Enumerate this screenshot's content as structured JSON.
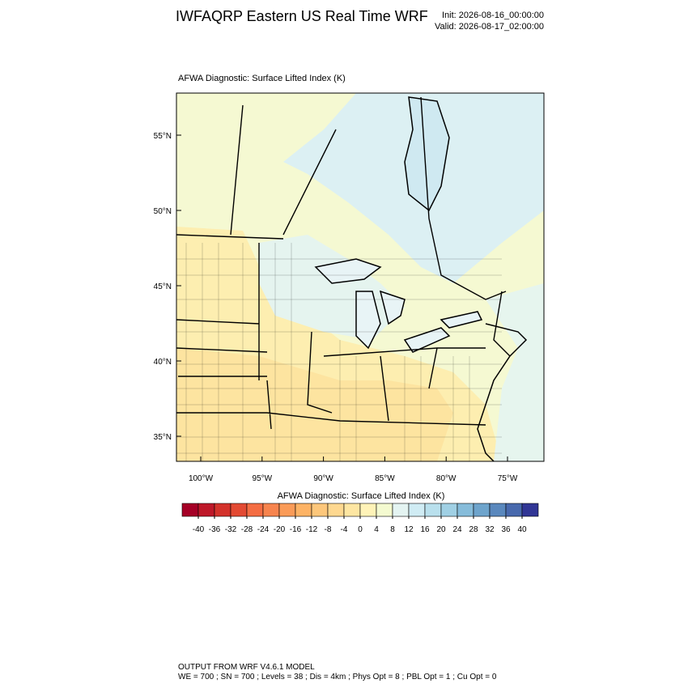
{
  "header": {
    "title": "IWFAQRP Eastern US Real Time WRF",
    "init": "Init: 2026-08-16_00:00:00",
    "valid": "Valid: 2026-08-17_02:00:00"
  },
  "map": {
    "title": "AFWA Diagnostic: Surface Lifted Index   (K)",
    "lat_ticks": [
      {
        "value": 55,
        "label": "55°N"
      },
      {
        "value": 50,
        "label": "50°N"
      },
      {
        "value": 45,
        "label": "45°N"
      },
      {
        "value": 40,
        "label": "40°N"
      },
      {
        "value": 35,
        "label": "35°N"
      }
    ],
    "lon_ticks": [
      {
        "value": -100,
        "label": "100°W"
      },
      {
        "value": -95,
        "label": "95°W"
      },
      {
        "value": -90,
        "label": "90°W"
      },
      {
        "value": -85,
        "label": "85°W"
      },
      {
        "value": -80,
        "label": "80°W"
      },
      {
        "value": -75,
        "label": "75°W"
      }
    ]
  },
  "colorbar": {
    "title": "AFWA Diagnostic: Surface Lifted Index  (K)",
    "levels": [
      -40,
      -36,
      -32,
      -28,
      -24,
      -20,
      -16,
      -12,
      -8,
      -4,
      0,
      4,
      8,
      12,
      16,
      20,
      24,
      28,
      32,
      36,
      40
    ],
    "colors": [
      "#a50026",
      "#be1829",
      "#d3322b",
      "#e34a33",
      "#f46d43",
      "#f7844e",
      "#fa9b58",
      "#fdb365",
      "#fdc77b",
      "#fed890",
      "#fee6a2",
      "#fff3b8",
      "#f4fad0",
      "#e4f4f2",
      "#d0ecf4",
      "#b9e0ed",
      "#a0d0e4",
      "#86bcda",
      "#6ea4cc",
      "#5a88bd",
      "#4869ad",
      "#313695"
    ]
  },
  "footer": {
    "line1": "OUTPUT FROM WRF V4.6.1 MODEL",
    "line2": "WE = 700 ; SN = 700 ; Levels = 38 ; Dis = 4km ; Phys Opt = 8 ; PBL Opt = 1 ; Cu Opt = 0"
  }
}
